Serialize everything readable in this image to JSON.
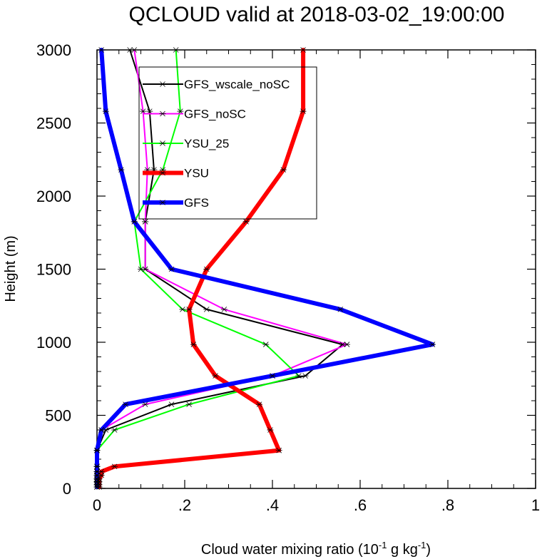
{
  "chart_data": {
    "type": "line",
    "title": "QCLOUD valid at 2018-03-02_19:00:00",
    "xlabel": "Cloud water mixing ratio (10",
    "xlabel_sup1": "-1",
    "xlabel_mid": " g kg",
    "xlabel_sup2": "-1",
    "xlabel_end": ")",
    "ylabel": "Height (m)",
    "xlim": [
      0,
      1
    ],
    "ylim": [
      0,
      3000
    ],
    "xticks": [
      0,
      0.2,
      0.4,
      0.6,
      0.8,
      1
    ],
    "xtick_labels": [
      "0",
      ".2",
      ".4",
      ".6",
      ".8",
      "1"
    ],
    "yticks": [
      0,
      500,
      1000,
      1500,
      2000,
      2500,
      3000
    ],
    "ytick_labels": [
      "0",
      "500",
      "1000",
      "1500",
      "2000",
      "2500",
      "3000"
    ],
    "legend_placement": "upper-center",
    "heights": [
      10,
      25,
      45,
      65,
      90,
      115,
      150,
      260,
      400,
      575,
      770,
      985,
      1225,
      1500,
      1825,
      2180,
      2580,
      3000
    ],
    "series": [
      {
        "name": "GFS_wscale_noSC",
        "color": "#000000",
        "width": 2,
        "x": [
          0,
          0,
          0,
          0,
          0,
          0,
          0,
          0,
          0.02,
          0.17,
          0.475,
          0.56,
          0.25,
          0.11,
          0.11,
          0.13,
          0.12,
          0.075
        ]
      },
      {
        "name": "GFS_noSC",
        "color": "#ff00ff",
        "width": 2,
        "x": [
          0,
          0,
          0,
          0,
          0,
          0,
          0,
          0,
          0.01,
          0.11,
          0.4,
          0.57,
          0.29,
          0.11,
          0.11,
          0.115,
          0.105,
          0.085
        ]
      },
      {
        "name": "YSU_25",
        "color": "#00ff00",
        "width": 2,
        "x": [
          0,
          0,
          0,
          0,
          0,
          0,
          0,
          0,
          0.04,
          0.21,
          0.46,
          0.385,
          0.195,
          0.1,
          0.085,
          0.15,
          0.19,
          0.18
        ]
      },
      {
        "name": "YSU",
        "color": "#ff0000",
        "width": 6,
        "x": [
          0.005,
          0.005,
          0.005,
          0.005,
          0.01,
          0.01,
          0.04,
          0.415,
          0.395,
          0.37,
          0.27,
          0.22,
          0.21,
          0.25,
          0.34,
          0.425,
          0.47,
          0.47
        ]
      },
      {
        "name": "GFS",
        "color": "#0000ff",
        "width": 6,
        "x": [
          0,
          0,
          0,
          0,
          0,
          0,
          0,
          0,
          0.01,
          0.065,
          0.4,
          0.765,
          0.555,
          0.17,
          0.085,
          0.055,
          0.02,
          0.01
        ]
      }
    ]
  }
}
